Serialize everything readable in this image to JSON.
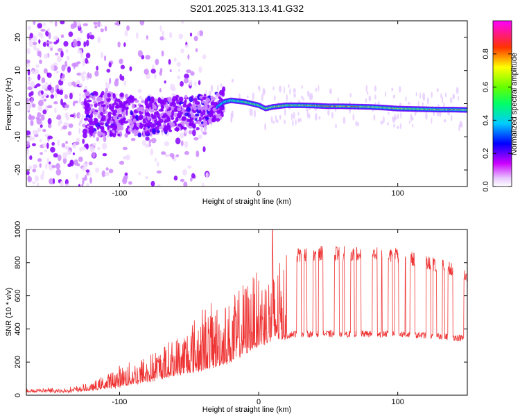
{
  "chart_data": [
    {
      "type": "heatmap",
      "title": "S201.2025.313.13.41.G32",
      "xlabel": "Height of straight line (km)",
      "ylabel": "Frequency (Hz)",
      "xlim": [
        -167,
        150
      ],
      "ylim": [
        -25,
        25
      ],
      "x_ticks": [
        -100,
        0,
        100
      ],
      "x_tick_labels": [
        "-100",
        "0",
        "100"
      ],
      "y_ticks": [
        20,
        10,
        0,
        -10,
        -20
      ],
      "y_tick_labels": [
        "20",
        "10",
        "0",
        "-10",
        "-20"
      ],
      "colorbar": {
        "label": "Normalized spectral amplitude",
        "range": [
          0,
          1
        ],
        "ticks": [
          0,
          0.2,
          0.4,
          0.6,
          0.8
        ],
        "tick_labels": [
          "0.0",
          "0.2",
          "0.4",
          "0.6",
          "0.8"
        ],
        "colors": [
          "#ffffff",
          "#cc00ff",
          "#0000ff",
          "#00ffff",
          "#00ff00",
          "#ffff00",
          "#ff0000",
          "#ff00ff"
        ]
      },
      "ridge": {
        "x": [
          -125,
          -100,
          -80,
          -60,
          -40,
          -30,
          -25,
          -20,
          -10,
          0,
          5,
          10,
          20,
          30,
          40,
          50,
          60,
          70,
          80,
          90,
          100,
          110,
          120,
          130,
          140,
          150
        ],
        "freq": [
          -3,
          -3.5,
          -4,
          -3,
          -2,
          -1,
          0.5,
          1,
          0.5,
          -0.5,
          -1.5,
          -1,
          -0.5,
          -0.5,
          -0.6,
          -0.8,
          -0.8,
          -0.9,
          -1.0,
          -1.2,
          -1.5,
          -1.6,
          -1.7,
          -1.8,
          -1.8,
          -1.9
        ],
        "amplitude": [
          0.2,
          0.25,
          0.3,
          0.35,
          0.4,
          0.45,
          0.5,
          0.55,
          0.6,
          0.7,
          0.7,
          0.75,
          0.8,
          0.85,
          0.9,
          0.9,
          0.85,
          0.8,
          0.8,
          0.75,
          0.75,
          0.7,
          0.75,
          0.8,
          0.85,
          0.8
        ]
      }
    },
    {
      "type": "line",
      "xlabel": "Height of straight line (km)",
      "ylabel": "SNR (10 * v/v)",
      "xlim": [
        -167,
        150
      ],
      "ylim": [
        0,
        1000
      ],
      "x_ticks": [
        -100,
        0,
        100
      ],
      "x_tick_labels": [
        "-100",
        "0",
        "100"
      ],
      "y_ticks": [
        0,
        200,
        400,
        600,
        800,
        1000
      ],
      "y_tick_labels": [
        "0",
        "200",
        "400",
        "600",
        "800",
        "1000"
      ],
      "color": "#ee3333",
      "envelope": {
        "x": [
          -167,
          -140,
          -120,
          -100,
          -80,
          -60,
          -40,
          -20,
          -10,
          0,
          10,
          20,
          25,
          30,
          40,
          60,
          80,
          100,
          120,
          140,
          150
        ],
        "baseline": [
          20,
          20,
          30,
          50,
          80,
          120,
          150,
          200,
          250,
          300,
          320,
          340,
          350,
          350,
          350,
          350,
          350,
          350,
          340,
          330,
          320
        ],
        "peak": [
          40,
          40,
          70,
          180,
          250,
          350,
          550,
          580,
          700,
          750,
          780,
          850,
          880,
          890,
          900,
          900,
          900,
          890,
          850,
          800,
          760
        ]
      },
      "spike": {
        "x": 10,
        "y": 1000
      }
    }
  ]
}
